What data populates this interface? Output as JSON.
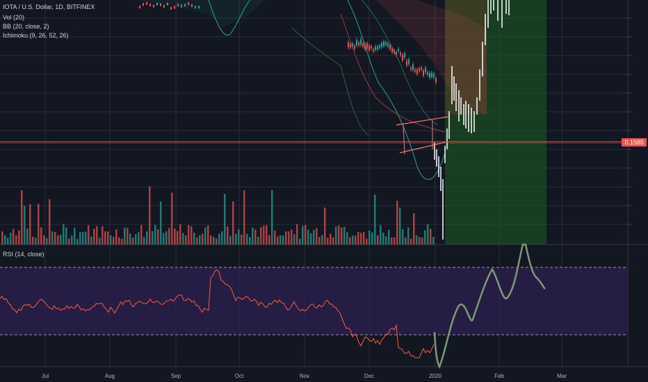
{
  "header": {
    "symbol_line": "IOTA / U.S. Dollar, 1D, BITFINEX",
    "indicator_volume": "Vol (20)",
    "indicator_bb": "BB (20, close, 2)",
    "indicator_ichimoku": "Ichimoku (9, 26, 52, 26)"
  },
  "price_tag": "0.1585",
  "rsi_pane": {
    "label": "RSI (14, close)"
  },
  "colors": {
    "background": "#131722",
    "grid": "#2a2e39",
    "up": "#26a69a",
    "down": "#ef5350",
    "projection": "#ffffff",
    "rsi_line": "#ff5d3a",
    "rsi_projection": "#7c9a74",
    "rsi_band": "#2b1f4d",
    "green_zone": "#1b5e20",
    "price_line": "#ef5350"
  },
  "chart_data": {
    "type": "candlestick",
    "x_axis_labels": [
      "Jul",
      "Aug",
      "Sep",
      "Oct",
      "Nov",
      "Dec",
      "2020",
      "Feb",
      "Mar"
    ],
    "last_price": 0.1585,
    "pattern": "descending channel / flag breakout",
    "projection": "white candles drawn after breakout rising into green target zone",
    "rsi": {
      "upper_band": 70,
      "lower_band": 30,
      "note": "RSI oscillates between ~30 and ~70 from Jul to Dec, spiking near 80 in Sep, falling near 20 in Dec; projected RSI curve rises above 70 in Feb"
    }
  }
}
